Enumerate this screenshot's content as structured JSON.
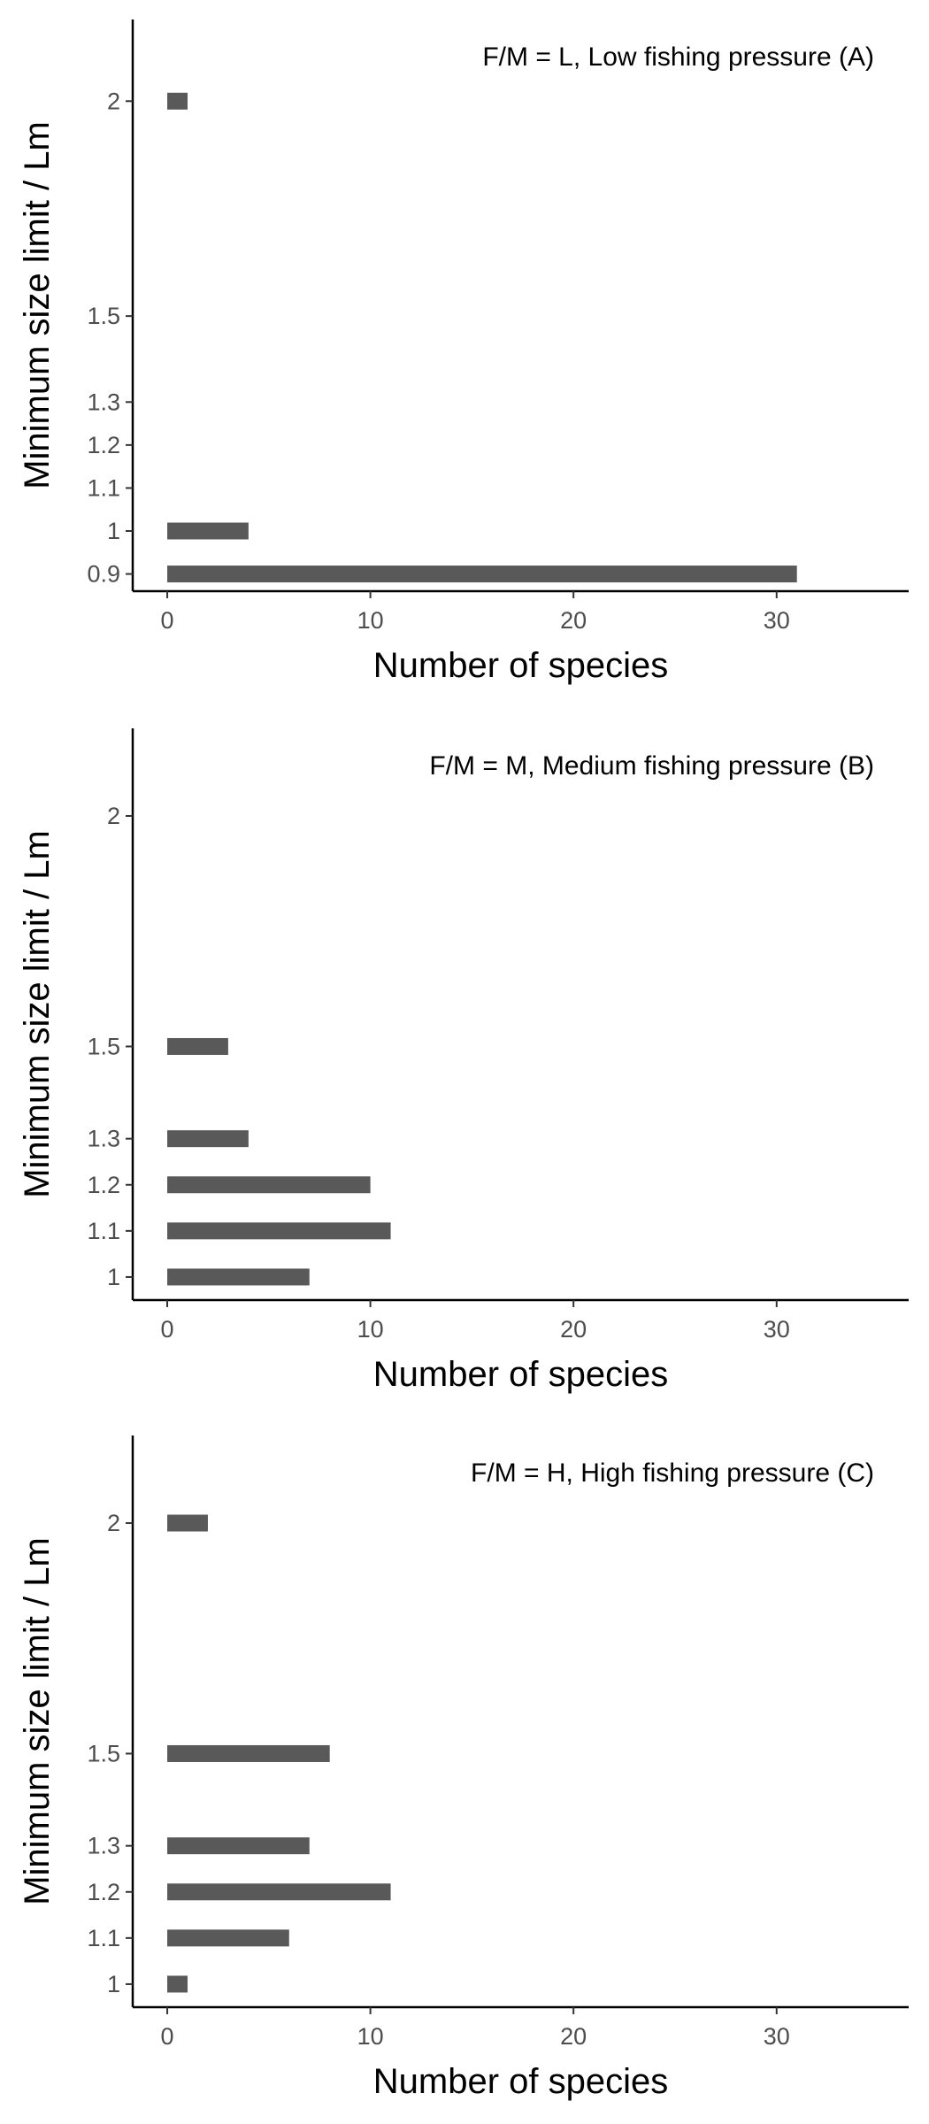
{
  "chart_data": [
    {
      "type": "bar",
      "orientation": "horizontal",
      "annotation": "F/M = L, Low fishing pressure (A)",
      "xlabel": "Number of species",
      "ylabel": "Minimum size limit / Lm",
      "xlim": [
        -1.7,
        36.5
      ],
      "ylim": [
        0.86,
        2.19
      ],
      "xticks": [
        0,
        10,
        20,
        30
      ],
      "xtick_labels": [
        "0",
        "10",
        "20",
        "30"
      ],
      "yticks": [
        0.9,
        1.0,
        1.1,
        1.2,
        1.3,
        1.5,
        2.0
      ],
      "ytick_labels": [
        "0.9",
        "1",
        "1.1",
        "1.2",
        "1.3",
        "1.5",
        "2"
      ],
      "bars": [
        {
          "y": 0.9,
          "value": 31
        },
        {
          "y": 1.0,
          "value": 4
        },
        {
          "y": 2.0,
          "value": 1
        }
      ],
      "color": "#595959",
      "grid": false
    },
    {
      "type": "bar",
      "orientation": "horizontal",
      "annotation": "F/M = M, Medium fishing pressure (B)",
      "xlabel": "Number of species",
      "ylabel": "Minimum size limit / Lm",
      "xlim": [
        -1.7,
        36.5
      ],
      "ylim": [
        0.95,
        2.19
      ],
      "xticks": [
        0,
        10,
        20,
        30
      ],
      "xtick_labels": [
        "0",
        "10",
        "20",
        "30"
      ],
      "yticks": [
        1.0,
        1.1,
        1.2,
        1.3,
        1.5,
        2.0
      ],
      "ytick_labels": [
        "1",
        "1.1",
        "1.2",
        "1.3",
        "1.5",
        "2"
      ],
      "bars": [
        {
          "y": 1.0,
          "value": 7
        },
        {
          "y": 1.1,
          "value": 11
        },
        {
          "y": 1.2,
          "value": 10
        },
        {
          "y": 1.3,
          "value": 4
        },
        {
          "y": 1.5,
          "value": 3
        }
      ],
      "color": "#595959",
      "grid": false
    },
    {
      "type": "bar",
      "orientation": "horizontal",
      "annotation": "F/M = H, High fishing pressure (C)",
      "xlabel": "Number of species",
      "ylabel": "Minimum size limit / Lm",
      "xlim": [
        -1.7,
        36.5
      ],
      "ylim": [
        0.95,
        2.19
      ],
      "xticks": [
        0,
        10,
        20,
        30
      ],
      "xtick_labels": [
        "0",
        "10",
        "20",
        "30"
      ],
      "yticks": [
        1.0,
        1.1,
        1.2,
        1.3,
        1.5,
        2.0
      ],
      "ytick_labels": [
        "1",
        "1.1",
        "1.2",
        "1.3",
        "1.5",
        "2"
      ],
      "bars": [
        {
          "y": 1.0,
          "value": 1
        },
        {
          "y": 1.1,
          "value": 6
        },
        {
          "y": 1.2,
          "value": 11
        },
        {
          "y": 1.3,
          "value": 7
        },
        {
          "y": 1.5,
          "value": 8
        },
        {
          "y": 2.0,
          "value": 2
        }
      ],
      "color": "#595959",
      "grid": false
    }
  ]
}
